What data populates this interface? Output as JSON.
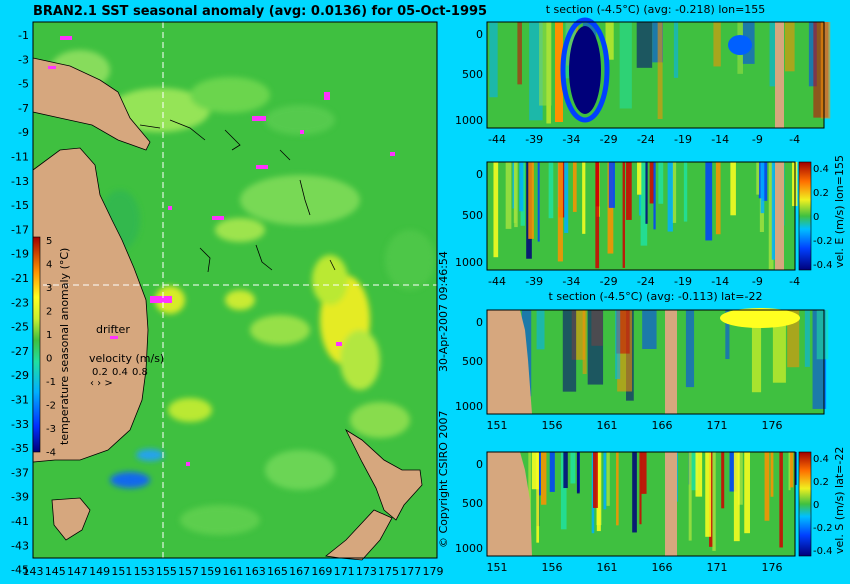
{
  "title": "BRAN2.1 SST seasonal anomaly (avg: 0.0136) for 05-Oct-1995",
  "copyright": "© Copyright CSIRO 2007",
  "timestamp": "30-Apr-2007 09:46:54",
  "colors": {
    "background": "#00d8ff",
    "land": "#d6a77e",
    "sea_base": "#3fc040",
    "marker": "#ff33ff",
    "guide_line": "#ffffff"
  },
  "map": {
    "type": "heatmap",
    "xticks": [
      "143",
      "145",
      "147",
      "149",
      "151",
      "153",
      "155",
      "157",
      "159",
      "161",
      "163",
      "165",
      "167",
      "169",
      "171",
      "173",
      "175",
      "177",
      "179"
    ],
    "yticks": [
      "-1",
      "-3",
      "-5",
      "-7",
      "-9",
      "-11",
      "-13",
      "-15",
      "-17",
      "-19",
      "-21",
      "-23",
      "-25",
      "-27",
      "-29",
      "-31",
      "-33",
      "-35",
      "-37",
      "-39",
      "-41",
      "-43",
      "-45"
    ],
    "xlim": [
      143,
      180
    ],
    "ylim": [
      -45,
      0
    ],
    "section_lon": 155,
    "section_lat": -22,
    "colorbar": {
      "label": "temperature seasonal anomaly (°C)",
      "ticks": [
        "5",
        "4",
        "3",
        "2",
        "1",
        "0",
        "-1",
        "-2",
        "-3",
        "-4"
      ],
      "range": [
        -4,
        5
      ]
    },
    "drifter_label": "drifter",
    "velocity_label": "velocity (m/s)",
    "velocity_scale": [
      "0.2",
      "0.4",
      "0.8"
    ]
  },
  "chart_data": [
    {
      "type": "heatmap",
      "title": "t section (-4.5°C) (avg: -0.218) lon=155",
      "xticks": [
        "-44",
        "-39",
        "-34",
        "-29",
        "-24",
        "-19",
        "-14",
        "-9",
        "-4"
      ],
      "yticks": [
        "0",
        "500",
        "1000"
      ],
      "colorbar": null
    },
    {
      "type": "heatmap",
      "title": "",
      "xticks": [
        "-44",
        "-39",
        "-34",
        "-29",
        "-24",
        "-19",
        "-14",
        "-9",
        "-4"
      ],
      "yticks": [
        "0",
        "500",
        "1000"
      ],
      "colorbar": {
        "label": "vel. E (m/s) lon=155",
        "ticks": [
          "0.4",
          "0.2",
          "0",
          "-0.2",
          "-0.4"
        ]
      }
    },
    {
      "type": "heatmap",
      "title": "t section (-4.5°C) (avg: -0.113) lat=-22",
      "xticks": [
        "151",
        "156",
        "161",
        "166",
        "171",
        "176"
      ],
      "yticks": [
        "0",
        "500",
        "1000"
      ],
      "colorbar": null
    },
    {
      "type": "heatmap",
      "title": "",
      "xticks": [
        "151",
        "156",
        "161",
        "166",
        "171",
        "176"
      ],
      "yticks": [
        "0",
        "500",
        "1000"
      ],
      "colorbar": {
        "label": "vel. S (m/s) lat=-22",
        "ticks": [
          "0.4",
          "0.2",
          "0",
          "-0.2",
          "-0.4"
        ]
      }
    }
  ]
}
